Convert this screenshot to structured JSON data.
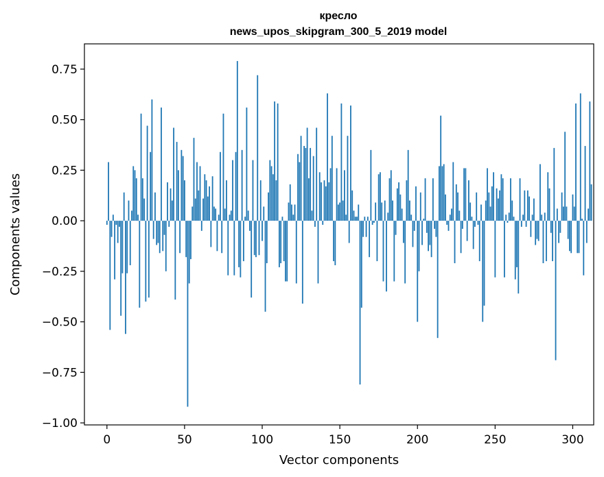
{
  "chart_data": {
    "type": "bar",
    "title": "кресло",
    "subtitle": "news_upos_skipgram_300_5_2019 model",
    "xlabel": "Vector components",
    "ylabel": "Components values",
    "xlim": [
      -14.5,
      313.5
    ],
    "ylim": [
      -1.01,
      0.875
    ],
    "xticks": [
      0,
      50,
      100,
      150,
      200,
      250,
      300
    ],
    "yticks": [
      -1.0,
      -0.75,
      -0.5,
      -0.25,
      0.0,
      0.25,
      0.5,
      0.75
    ],
    "ytick_labels": [
      "−1.00",
      "−0.75",
      "−0.50",
      "−0.25",
      "0.00",
      "0.25",
      "0.50",
      "0.75"
    ],
    "bar_color": "#1f77b4",
    "grid": false,
    "legend": "none",
    "values": [
      -0.02,
      0.29,
      -0.54,
      -0.08,
      0.03,
      -0.29,
      -0.02,
      -0.11,
      -0.03,
      -0.47,
      -0.26,
      0.14,
      -0.56,
      -0.26,
      0.1,
      -0.22,
      0.05,
      0.27,
      0.25,
      0.21,
      0.03,
      -0.43,
      0.53,
      0.21,
      0.11,
      -0.4,
      0.47,
      -0.38,
      0.34,
      0.6,
      -0.09,
      0.14,
      -0.12,
      -0.11,
      -0.16,
      0.56,
      -0.15,
      -0.07,
      -0.25,
      0.19,
      -0.03,
      0.16,
      0.1,
      0.46,
      -0.39,
      0.39,
      0.25,
      -0.16,
      0.35,
      0.32,
      0.2,
      -0.18,
      -0.92,
      -0.31,
      -0.19,
      0.07,
      0.41,
      0.11,
      0.29,
      0.15,
      0.27,
      -0.05,
      0.11,
      0.23,
      0.2,
      0.12,
      0.17,
      -0.13,
      0.22,
      0.07,
      0.06,
      -0.15,
      0.03,
      0.34,
      -0.16,
      0.53,
      0.06,
      0.2,
      -0.27,
      0.03,
      0.05,
      0.3,
      -0.27,
      0.34,
      0.79,
      -0.23,
      -0.28,
      0.35,
      -0.2,
      0.02,
      0.56,
      0.05,
      -0.05,
      -0.38,
      0.3,
      -0.17,
      -0.18,
      0.72,
      -0.17,
      0.2,
      -0.1,
      0.07,
      -0.45,
      -0.21,
      0.14,
      0.3,
      0.27,
      0.23,
      0.59,
      0.2,
      0.58,
      -0.23,
      -0.21,
      0.02,
      -0.2,
      -0.3,
      -0.3,
      0.09,
      0.18,
      0.08,
      0.03,
      0.08,
      -0.31,
      0.33,
      0.29,
      0.42,
      -0.41,
      0.37,
      0.36,
      0.46,
      0.21,
      0.36,
      0.05,
      0.32,
      -0.03,
      0.46,
      -0.31,
      0.24,
      0.19,
      -0.02,
      0.2,
      0.17,
      0.63,
      0.19,
      0.26,
      0.42,
      -0.2,
      -0.22,
      0.26,
      0.08,
      0.09,
      0.58,
      0.1,
      0.25,
      0.03,
      0.42,
      -0.11,
      0.57,
      0.15,
      0.05,
      0.02,
      0.02,
      0.08,
      -0.81,
      -0.43,
      -0.08,
      0.02,
      -0.08,
      0.02,
      -0.18,
      0.35,
      -0.02,
      -0.01,
      0.09,
      -0.2,
      0.23,
      0.24,
      0.09,
      -0.3,
      0.1,
      -0.35,
      0.04,
      0.21,
      0.25,
      0.1,
      -0.3,
      -0.07,
      0.16,
      0.19,
      0.13,
      0.06,
      -0.11,
      -0.31,
      0.2,
      0.35,
      0.1,
      0.03,
      -0.13,
      -0.05,
      0.17,
      -0.5,
      -0.25,
      0.14,
      -0.12,
      0.01,
      0.21,
      -0.06,
      -0.15,
      -0.12,
      -0.18,
      0.21,
      -0.04,
      -0.08,
      -0.58,
      0.27,
      0.52,
      0.27,
      0.28,
      0.13,
      -0.02,
      -0.05,
      0.03,
      0.06,
      0.29,
      -0.21,
      0.18,
      0.14,
      0.05,
      -0.16,
      -0.04,
      0.26,
      0.26,
      -0.1,
      0.2,
      0.09,
      0.02,
      -0.14,
      -0.03,
      0.14,
      -0.02,
      -0.2,
      0.08,
      -0.5,
      -0.42,
      0.1,
      0.26,
      0.14,
      0.07,
      0.17,
      0.24,
      -0.28,
      0.16,
      0.11,
      0.15,
      0.23,
      0.21,
      -0.28,
      0.03,
      -0.01,
      0.04,
      0.21,
      0.1,
      0.02,
      -0.29,
      -0.23,
      -0.36,
      0.21,
      -0.03,
      0.03,
      0.15,
      -0.03,
      0.15,
      0.12,
      -0.08,
      0.03,
      0.11,
      -0.12,
      -0.09,
      -0.1,
      0.28,
      0.03,
      -0.21,
      0.04,
      -0.2,
      0.24,
      0.16,
      -0.06,
      -0.2,
      0.36,
      -0.69,
      0.06,
      -0.11,
      -0.06,
      0.14,
      0.07,
      0.44,
      0.07,
      -0.09,
      -0.15,
      -0.16,
      0.13,
      0.07,
      0.58,
      -0.16,
      -0.16,
      0.63,
      0.01,
      -0.27,
      0.37,
      -0.11,
      0.06,
      0.59,
      0.18
    ]
  }
}
